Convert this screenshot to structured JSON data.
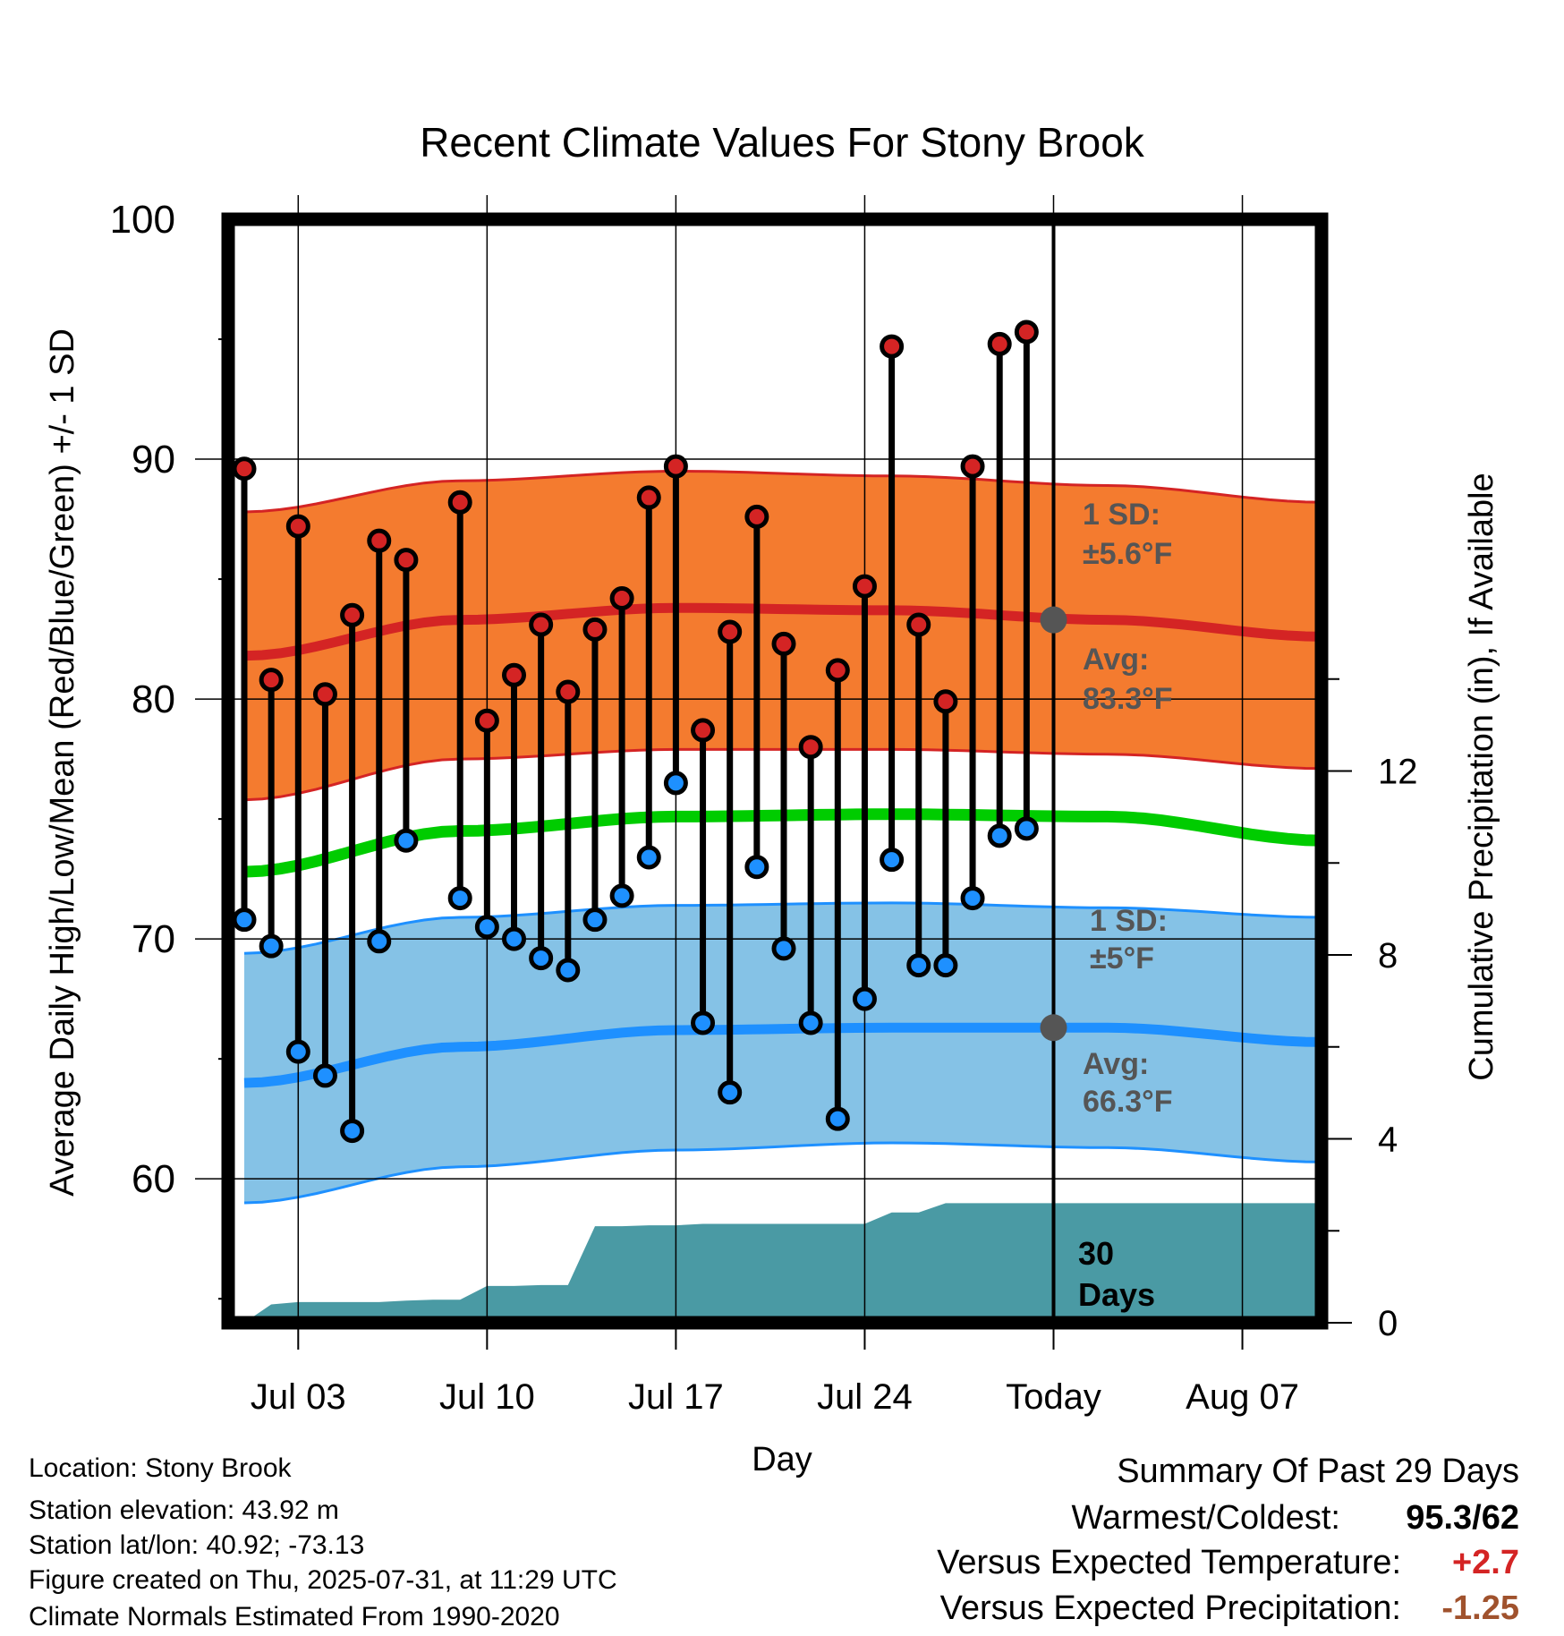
{
  "chart_data": {
    "type": "line",
    "title": "Recent Climate Values For Stony Brook",
    "xlabel": "Day",
    "ylabel": "Average Daily High/Low/Mean (Red/Blue/Green) +/- 1 SD",
    "y2label": "Cumulative Precipitation (in), If Available",
    "ylim": [
      54,
      100
    ],
    "y2lim": [
      0,
      24
    ],
    "x_tick_labels": [
      "Jul 03",
      "Jul 10",
      "Jul 17",
      "Jul 24",
      "Today",
      "Aug 07"
    ],
    "y_ticks": [
      "60",
      "70",
      "80",
      "90",
      "100"
    ],
    "y2_ticks": [
      "0",
      "4",
      "8",
      "12"
    ],
    "days": [
      "Jul 01",
      "Jul 02",
      "Jul 03",
      "Jul 04",
      "Jul 05",
      "Jul 06",
      "Jul 07",
      "Jul 08",
      "Jul 09",
      "Jul 10",
      "Jul 11",
      "Jul 12",
      "Jul 13",
      "Jul 14",
      "Jul 15",
      "Jul 16",
      "Jul 17",
      "Jul 18",
      "Jul 19",
      "Jul 20",
      "Jul 21",
      "Jul 22",
      "Jul 23",
      "Jul 24",
      "Jul 25",
      "Jul 26",
      "Jul 27",
      "Jul 28",
      "Jul 29",
      "Jul 30"
    ],
    "highs": [
      89.6,
      80.8,
      87.2,
      80.2,
      83.5,
      86.6,
      85.8,
      null,
      88.2,
      79.1,
      81.0,
      83.1,
      80.3,
      82.9,
      84.2,
      88.4,
      89.7,
      78.7,
      82.8,
      87.6,
      82.3,
      78.0,
      81.2,
      84.7,
      94.7,
      83.1,
      79.9,
      89.7,
      94.8,
      95.3
    ],
    "lows": [
      70.8,
      69.7,
      65.3,
      64.3,
      62.0,
      69.9,
      74.1,
      null,
      71.7,
      70.5,
      70.0,
      69.2,
      68.7,
      70.8,
      71.8,
      73.4,
      76.5,
      66.5,
      63.6,
      73.0,
      69.6,
      66.5,
      62.5,
      67.5,
      73.3,
      68.9,
      68.9,
      71.7,
      74.3,
      74.6
    ],
    "normal_high": [
      81.8,
      83.3,
      83.8,
      83.7,
      83.3,
      82.6
    ],
    "normal_low": [
      64.0,
      65.5,
      66.2,
      66.3,
      66.3,
      65.7
    ],
    "normal_mean": [
      72.8,
      74.5,
      75.1,
      75.2,
      75.1,
      74.1
    ],
    "high_sd_band": {
      "upper": [
        87.8,
        89.1,
        89.5,
        89.3,
        88.9,
        88.2
      ],
      "lower": [
        75.8,
        77.5,
        77.9,
        77.9,
        77.7,
        77.1
      ]
    },
    "low_sd_band": {
      "upper": [
        69.4,
        70.9,
        71.4,
        71.5,
        71.3,
        70.9
      ],
      "lower": [
        59.0,
        60.5,
        61.2,
        61.5,
        61.3,
        60.7
      ]
    },
    "cumulative_precip": [
      0.0,
      0.4,
      0.45,
      0.45,
      0.45,
      0.45,
      0.48,
      0.5,
      0.5,
      0.8,
      0.8,
      0.82,
      0.82,
      2.1,
      2.1,
      2.12,
      2.12,
      2.15,
      2.15,
      2.15,
      2.15,
      2.15,
      2.15,
      2.15,
      2.4,
      2.4,
      2.6,
      2.6,
      2.6,
      2.6,
      2.6,
      2.6,
      2.6,
      2.6,
      2.6,
      2.6,
      2.6,
      2.6,
      2.6,
      2.6,
      2.6
    ],
    "annotations": {
      "high_sd_label": "1 SD:",
      "high_sd_value": "±5.6°F",
      "high_avg_label": "Avg:",
      "high_avg_value": "83.3°F",
      "low_sd_label": "1 SD:",
      "low_sd_value": "±5°F",
      "low_avg_label": "Avg:",
      "low_avg_value": "66.3°F",
      "days_count": "30",
      "days_word": "Days"
    },
    "today_high_normal": 83.3,
    "today_low_normal": 66.3,
    "grid": true,
    "colors": {
      "high_band": "#f47b2f",
      "high_line": "#d42424",
      "high_band_edge": "#d42424",
      "low_band": "#85c2e6",
      "low_line": "#1e90ff",
      "low_band_edge": "#1e90ff",
      "mean_line": "#00cc00",
      "precip": "#4a9aa4",
      "high_marker": "#d42424",
      "low_marker": "#1e90ff",
      "annotation": "#555555"
    }
  },
  "info": {
    "location": "Location: Stony Brook",
    "elevation": "Station elevation: 43.92 m",
    "latlon": "Station lat/lon: 40.92; -73.13",
    "created": "Figure created on Thu, 2025-07-31, at 11:29 UTC",
    "normals": "Climate Normals Estimated From 1990-2020"
  },
  "summary": {
    "title": "Summary Of Past 29 Days",
    "warm_cold_label": "Warmest/Coldest:",
    "warm_cold_value": "95.3/62",
    "temp_label": "Versus Expected Temperature:",
    "temp_value": "+2.7",
    "temp_color": "#d42424",
    "precip_label": "Versus Expected Precipitation:",
    "precip_value": "-1.25",
    "precip_color": "#a0522d"
  }
}
